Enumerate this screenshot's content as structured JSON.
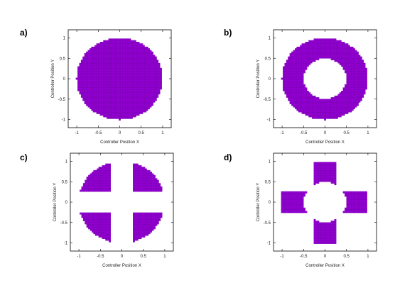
{
  "chart_data": [
    {
      "panel": "a)",
      "type": "scatter",
      "xlabel": "Controller Position X",
      "ylabel": "Controller Position Y",
      "xlim": [
        -1.2,
        1.2
      ],
      "ylim": [
        -1.2,
        1.2
      ],
      "xticks": [
        "-1",
        "-0.5",
        "0",
        "0.5",
        "1"
      ],
      "yticks": [
        "-1",
        "-0.5",
        "0",
        "0.5",
        "1"
      ],
      "region": {
        "shape": "disk",
        "r_outer": 1.0
      },
      "color": "#9400d3",
      "grid": false
    },
    {
      "panel": "b)",
      "type": "scatter",
      "xlabel": "Controller Position X",
      "ylabel": "Controller Position Y",
      "xlim": [
        -1.2,
        1.2
      ],
      "ylim": [
        -1.2,
        1.2
      ],
      "xticks": [
        "-1",
        "-0.5",
        "0",
        "0.5",
        "1"
      ],
      "yticks": [
        "-1",
        "-0.5",
        "0",
        "0.5",
        "1"
      ],
      "region": {
        "shape": "annulus",
        "r_inner": 0.5,
        "r_outer": 1.0
      },
      "color": "#9400d3",
      "grid": false
    },
    {
      "panel": "c)",
      "type": "scatter",
      "xlabel": "Controller Position X",
      "ylabel": "Controller Position Y",
      "xlim": [
        -1.2,
        1.2
      ],
      "ylim": [
        -1.2,
        1.2
      ],
      "xticks": [
        "-1",
        "-0.5",
        "0",
        "0.5",
        "1"
      ],
      "yticks": [
        "-1",
        "-0.5",
        "0",
        "0.5",
        "1"
      ],
      "region": {
        "shape": "disk-minus-cross",
        "r_outer": 1.0,
        "band_halfwidth": 0.25
      },
      "color": "#9400d3",
      "grid": false
    },
    {
      "panel": "d)",
      "type": "scatter",
      "xlabel": "Controller Position X",
      "ylabel": "Controller Position Y",
      "xlim": [
        -1.2,
        1.2
      ],
      "ylim": [
        -1.2,
        1.2
      ],
      "xticks": [
        "-1",
        "-0.5",
        "0",
        "0.5",
        "1"
      ],
      "yticks": [
        "-1",
        "-0.5",
        "0",
        "0.5",
        "1"
      ],
      "region": {
        "shape": "cross-minus-disk",
        "arm_halfwidth": 0.25,
        "arm_extent": 1.0,
        "r_inner": 0.5
      },
      "color": "#9400d3",
      "grid": false
    }
  ]
}
